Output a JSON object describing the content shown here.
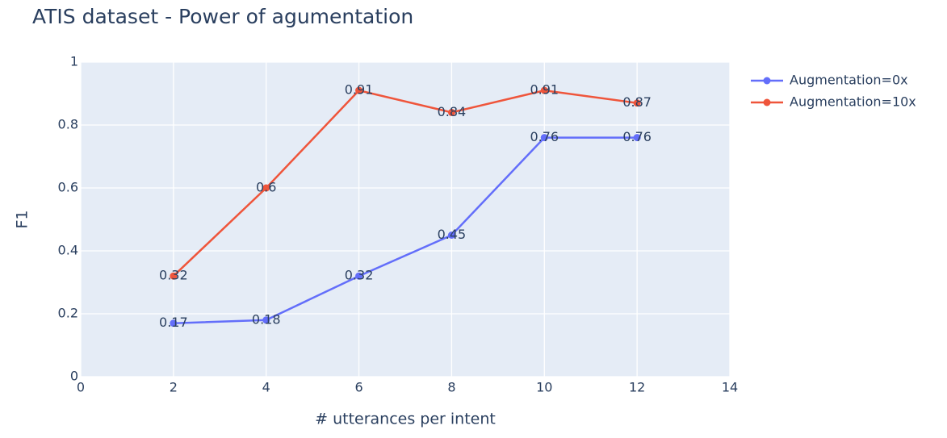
{
  "chart_data": {
    "type": "line",
    "title": "ATIS dataset - Power of agumentation",
    "x_label": "# utterances per intent",
    "y_label": "F1",
    "x": [
      2,
      4,
      6,
      8,
      10,
      12
    ],
    "series": [
      {
        "name": "Augmentation=0x",
        "color": "#636efa",
        "values": [
          0.17,
          0.18,
          0.32,
          0.45,
          0.76,
          0.76
        ]
      },
      {
        "name": "Augmentation=10x",
        "color": "#ef553b",
        "values": [
          0.32,
          0.6,
          0.91,
          0.84,
          0.91,
          0.87
        ]
      }
    ],
    "xlim": [
      0,
      14
    ],
    "xticks": [
      0,
      2,
      4,
      6,
      8,
      10,
      12,
      14
    ],
    "ylim": [
      0,
      1
    ],
    "yticks": [
      0,
      0.2,
      0.4,
      0.6,
      0.8,
      1
    ],
    "grid": true,
    "legend": "right"
  }
}
